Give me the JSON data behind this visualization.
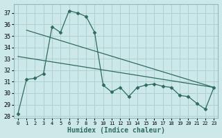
{
  "xlabel": "Humidex (Indice chaleur)",
  "bg_color": "#cce8e8",
  "grid_color": "#afd0d0",
  "line_color": "#2e6b5e",
  "ylim": [
    27.8,
    37.8
  ],
  "xlim": [
    -0.5,
    23.5
  ],
  "yticks": [
    28,
    29,
    30,
    31,
    32,
    33,
    34,
    35,
    36,
    37
  ],
  "xticks": [
    0,
    1,
    2,
    3,
    4,
    5,
    6,
    7,
    8,
    9,
    10,
    11,
    12,
    13,
    14,
    15,
    16,
    17,
    18,
    19,
    20,
    21,
    22,
    23
  ],
  "series1_x": [
    0,
    1,
    2,
    3,
    4,
    5,
    6,
    7,
    8,
    9,
    10,
    11,
    12,
    13,
    14,
    15,
    16,
    17,
    18,
    19,
    20,
    21,
    22,
    23
  ],
  "series1_y": [
    28.2,
    31.2,
    31.3,
    31.7,
    35.8,
    35.3,
    37.2,
    37.0,
    36.7,
    35.3,
    30.7,
    30.1,
    30.5,
    29.7,
    30.5,
    30.7,
    30.8,
    30.6,
    30.5,
    29.8,
    29.7,
    29.1,
    28.6,
    30.5
  ],
  "series2_x": [
    0,
    23
  ],
  "series2_y": [
    33.2,
    30.5
  ],
  "series3_x": [
    1,
    23
  ],
  "series3_y": [
    35.5,
    30.5
  ]
}
